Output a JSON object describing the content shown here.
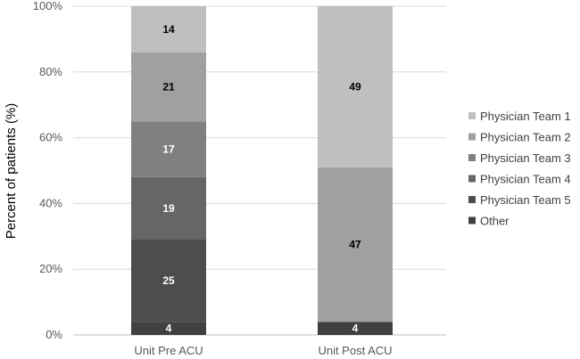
{
  "chart_data": {
    "type": "bar",
    "stacked": true,
    "categories": [
      "Unit Pre ACU",
      "Unit Post ACU"
    ],
    "ylabel": "Percent of patients (%)",
    "ylim": [
      0,
      100
    ],
    "yticks": [
      "0%",
      "20%",
      "40%",
      "60%",
      "80%",
      "100%"
    ],
    "grid": true,
    "legend_position": "right",
    "series": [
      {
        "name": "Other",
        "values": [
          4,
          4
        ],
        "labels": [
          "4",
          "4"
        ],
        "color": "#404040",
        "label_color": "#ffffff"
      },
      {
        "name": "Physician Team 5",
        "values": [
          25,
          0
        ],
        "labels": [
          "25",
          ""
        ],
        "color": "#4d4d4d",
        "label_color": "#ffffff"
      },
      {
        "name": "Physician Team 4",
        "values": [
          19,
          0
        ],
        "labels": [
          "19",
          ""
        ],
        "color": "#666666",
        "label_color": "#ffffff"
      },
      {
        "name": "Physician Team 3",
        "values": [
          17,
          0
        ],
        "labels": [
          "17",
          ""
        ],
        "color": "#808080",
        "label_color": "#ffffff"
      },
      {
        "name": "Physician Team 2",
        "values": [
          21,
          47
        ],
        "labels": [
          "21",
          "47"
        ],
        "color": "#a0a0a0",
        "label_color": "#000000"
      },
      {
        "name": "Physician Team 1",
        "values": [
          14,
          49
        ],
        "labels": [
          "14",
          "49"
        ],
        "color": "#bfbfbf",
        "label_color": "#000000"
      }
    ],
    "legend_order": [
      "Physician Team 1",
      "Physician Team 2",
      "Physician Team 3",
      "Physician Team 4",
      "Physician Team 5",
      "Other"
    ]
  }
}
